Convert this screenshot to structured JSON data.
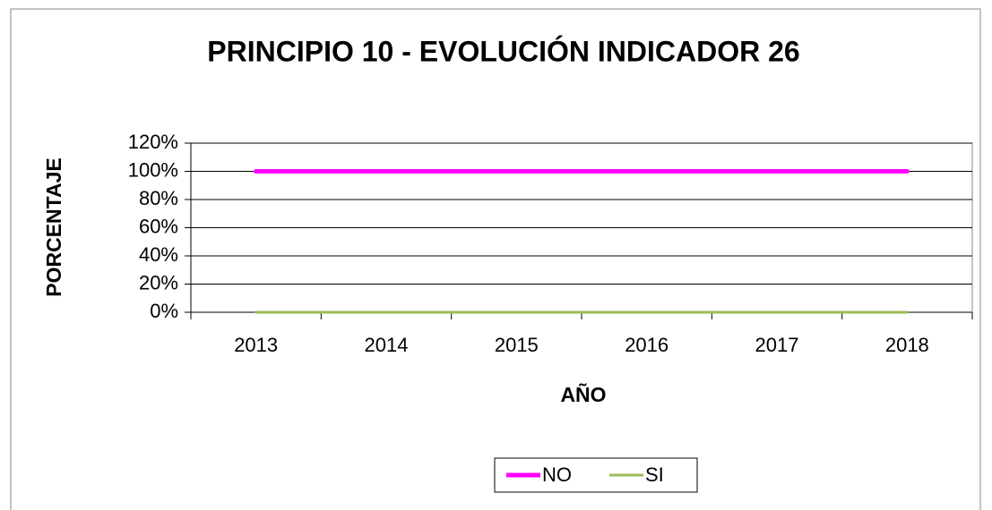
{
  "chart_data": {
    "type": "line",
    "title": "PRINCIPIO 10 - EVOLUCIÓN INDICADOR 26",
    "y_label": "PORCENTAJE",
    "x_label": "AÑO",
    "categories": [
      "2013",
      "2014",
      "2015",
      "2016",
      "2017",
      "2018"
    ],
    "series": [
      {
        "name": "NO",
        "color": "#ff00ff",
        "values": [
          100,
          100,
          100,
          100,
          100,
          100
        ]
      },
      {
        "name": "SI",
        "color": "#9bbb59",
        "values": [
          0,
          0,
          0,
          0,
          0,
          0
        ]
      }
    ],
    "ylim": [
      0,
      120
    ],
    "yticks": [
      {
        "value": 0,
        "label": "0%"
      },
      {
        "value": 20,
        "label": "20%"
      },
      {
        "value": 40,
        "label": "40%"
      },
      {
        "value": 60,
        "label": "60%"
      },
      {
        "value": 80,
        "label": "80%"
      },
      {
        "value": 100,
        "label": "100%"
      },
      {
        "value": 120,
        "label": "120%"
      }
    ],
    "grid": true,
    "legend": "bottom"
  }
}
